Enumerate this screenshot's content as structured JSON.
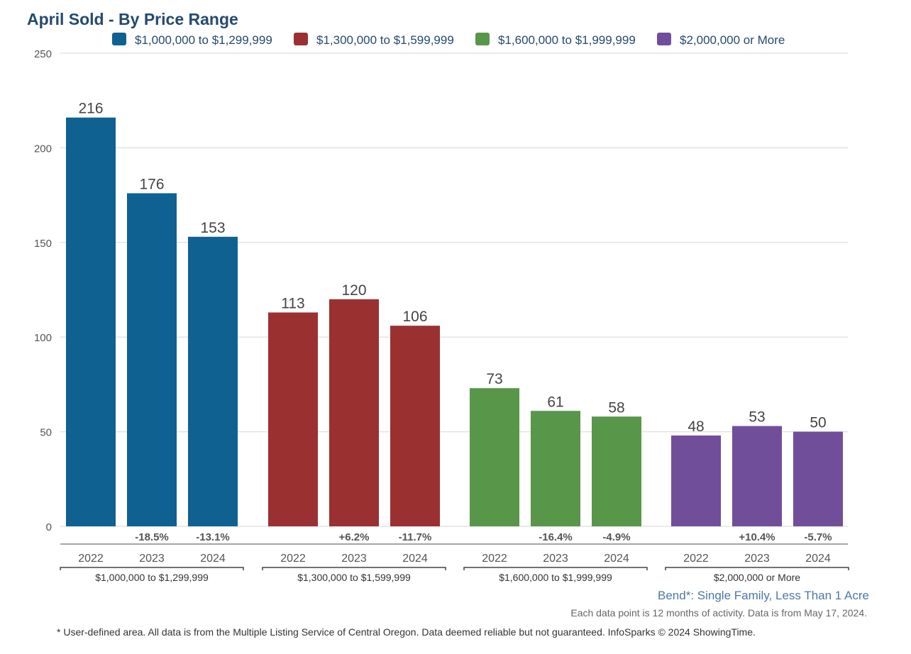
{
  "chart_data": {
    "type": "bar",
    "title": "April Sold - By Price Range",
    "ylim": [
      0,
      250
    ],
    "yticks": [
      0,
      50,
      100,
      150,
      200,
      250
    ],
    "grid": true,
    "legend_placement": "top",
    "categories": [
      "2022",
      "2023",
      "2024"
    ],
    "series": [
      {
        "name": "$1,000,000 to $1,299,999",
        "color": "#0f6192",
        "values": [
          216,
          176,
          153
        ],
        "changes": [
          "",
          "-18.5%",
          "-13.1%"
        ]
      },
      {
        "name": "$1,300,000 to $1,599,999",
        "color": "#9b3031",
        "values": [
          113,
          120,
          106
        ],
        "changes": [
          "",
          "+6.2%",
          "-11.7%"
        ]
      },
      {
        "name": "$1,600,000 to $1,999,999",
        "color": "#58964a",
        "values": [
          73,
          61,
          58
        ],
        "changes": [
          "",
          "-16.4%",
          "-4.9%"
        ]
      },
      {
        "name": "$2,000,000 or More",
        "color": "#714e9a",
        "values": [
          48,
          53,
          50
        ],
        "changes": [
          "",
          "+10.4%",
          "-5.7%"
        ]
      }
    ]
  },
  "area_label": "Bend*: Single Family, Less Than 1 Acre",
  "note": "Each data point is 12 months of activity. Data is from May 17, 2024.",
  "footer": "* User-defined area. All data is from the Multiple Listing Service of Central Oregon. Data deemed reliable but not guaranteed. InfoSparks © 2024 ShowingTime."
}
